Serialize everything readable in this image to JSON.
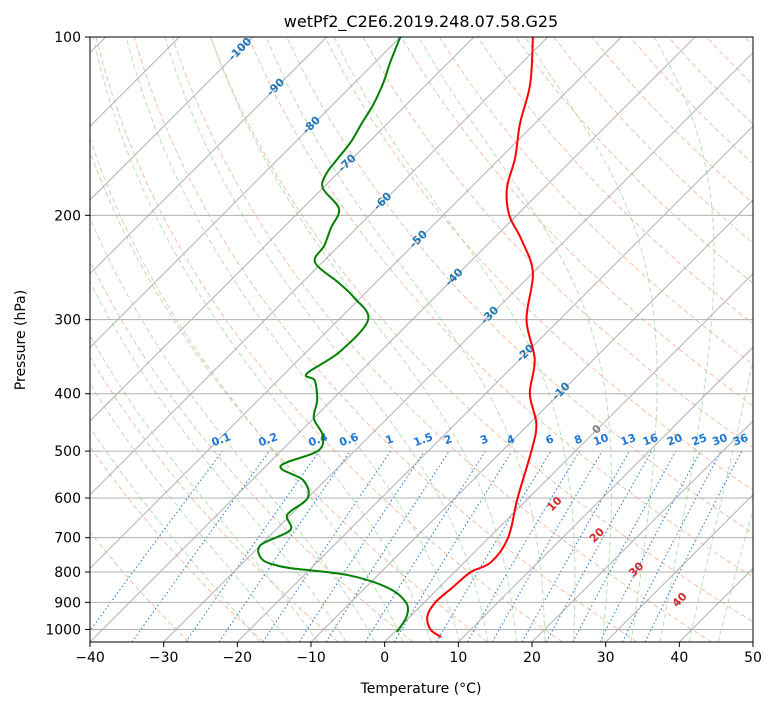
{
  "chart_data": {
    "type": "line",
    "subtype": "skew-t log-p sounding",
    "title": "wetPf2_C2E6.2019.248.07.58.G25",
    "xlabel": "Temperature (°C)",
    "ylabel": "Pressure (hPa)",
    "xlim": [
      -40,
      50
    ],
    "ylim": [
      1050,
      100
    ],
    "y_scale": "log",
    "x_ticks": [
      -40,
      -30,
      -20,
      -10,
      0,
      10,
      20,
      30,
      40,
      50
    ],
    "x_tick_labels": [
      "−40",
      "−30",
      "−20",
      "−10",
      "0",
      "10",
      "20",
      "30",
      "40",
      "50"
    ],
    "y_ticks": [
      1000,
      900,
      800,
      700,
      600,
      500,
      400,
      300,
      200,
      100
    ],
    "y_tick_labels": [
      "1000",
      "900",
      "800",
      "700",
      "600",
      "500",
      "400",
      "300",
      "200",
      "100"
    ],
    "grid": true,
    "colors": {
      "temperature": "#ff0000",
      "dewpoint": "#008000",
      "isotherm": "#b0b0b0",
      "dry_adiabat": "#f4a582",
      "moist_adiabat": "#a6d8a6",
      "mixing_ratio": "#1f77d4",
      "isotherm_label": "#1f77b4",
      "theta_e_label": "#d62728"
    },
    "isotherm_labels": [
      "-100",
      "-90",
      "-80",
      "-70",
      "-60",
      "-50",
      "-40",
      "-30",
      "-20",
      "-10",
      "0"
    ],
    "mixing_ratio_labels": [
      "0.1",
      "0.2",
      "0.4",
      "0.6",
      "1",
      "1.5",
      "2",
      "3",
      "4",
      "6",
      "8",
      "10",
      "13",
      "16",
      "20",
      "25",
      "30",
      "36"
    ],
    "mixing_ratio_values": [
      0.1,
      0.2,
      0.4,
      0.6,
      1,
      1.5,
      2,
      3,
      4,
      6,
      8,
      10,
      13,
      16,
      20,
      25,
      30,
      36
    ],
    "positive_labels": [
      "10",
      "20",
      "30",
      "40"
    ],
    "series": [
      {
        "name": "",
        "color": "#ff0000",
        "points": [
          [
            1030,
            7.0
          ],
          [
            1000,
            4.5
          ],
          [
            950,
            2.3
          ],
          [
            900,
            1.5
          ],
          [
            850,
            1.8
          ],
          [
            800,
            2.2
          ],
          [
            770,
            3.6
          ],
          [
            700,
            2.6
          ],
          [
            600,
            -1.5
          ],
          [
            500,
            -6.0
          ],
          [
            450,
            -9.0
          ],
          [
            400,
            -14.0
          ],
          [
            350,
            -18.0
          ],
          [
            300,
            -24.5
          ],
          [
            250,
            -30.0
          ],
          [
            220,
            -36.0
          ],
          [
            200,
            -41.0
          ],
          [
            180,
            -45.0
          ],
          [
            160,
            -48.0
          ],
          [
            140,
            -52.0
          ],
          [
            120,
            -56.0
          ],
          [
            100,
            -62.0
          ]
        ]
      },
      {
        "name": "",
        "color": "#008000",
        "points": [
          [
            1010,
            0.3
          ],
          [
            950,
            -0.5
          ],
          [
            900,
            -2.5
          ],
          [
            850,
            -7.0
          ],
          [
            810,
            -14.0
          ],
          [
            790,
            -22.0
          ],
          [
            780,
            -25.0
          ],
          [
            760,
            -28.0
          ],
          [
            720,
            -30.0
          ],
          [
            680,
            -28.0
          ],
          [
            640,
            -30.5
          ],
          [
            600,
            -30.0
          ],
          [
            560,
            -33.0
          ],
          [
            530,
            -38.0
          ],
          [
            500,
            -35.0
          ],
          [
            470,
            -36.5
          ],
          [
            440,
            -40.0
          ],
          [
            410,
            -42.0
          ],
          [
            380,
            -45.0
          ],
          [
            370,
            -47.0
          ],
          [
            340,
            -45.5
          ],
          [
            300,
            -46.0
          ],
          [
            275,
            -51.0
          ],
          [
            260,
            -55.0
          ],
          [
            240,
            -61.0
          ],
          [
            225,
            -62.0
          ],
          [
            210,
            -63.5
          ],
          [
            195,
            -65.0
          ],
          [
            180,
            -70.0
          ],
          [
            170,
            -71.5
          ],
          [
            160,
            -72.0
          ],
          [
            150,
            -72.5
          ],
          [
            140,
            -73.5
          ],
          [
            130,
            -74.5
          ],
          [
            120,
            -76.0
          ],
          [
            110,
            -78.0
          ],
          [
            100,
            -80.0
          ]
        ]
      }
    ]
  }
}
